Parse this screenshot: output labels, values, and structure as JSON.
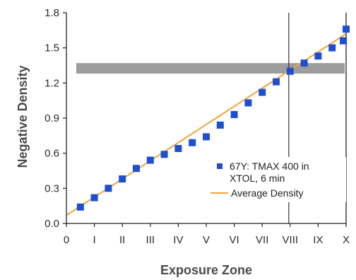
{
  "chart_data": {
    "type": "scatter",
    "title": "",
    "xlabel": "Exposure Zone",
    "ylabel": "Negative Density",
    "xlim": [
      0,
      10
    ],
    "ylim": [
      0,
      1.8
    ],
    "x_tick_labels": [
      "0",
      "I",
      "II",
      "III",
      "IV",
      "V",
      "VI",
      "VII",
      "VIII",
      "IX",
      "X"
    ],
    "y_ticks": [
      0,
      0.3,
      0.6,
      0.9,
      1.2,
      1.5,
      1.8
    ],
    "y_tick_labels": [
      "0.0",
      "0.3",
      "0.6",
      "0.9",
      "1.2",
      "1.5",
      "1.8"
    ],
    "grid": false,
    "legend_position": "bottom-right",
    "series": [
      {
        "name": "67Y: TMAX 400 in XTOL, 6 min",
        "kind": "markers",
        "color": "#1f4fd1",
        "x": [
          0.5,
          1.0,
          1.5,
          2.0,
          2.5,
          3.0,
          3.5,
          4.0,
          4.5,
          5.0,
          5.5,
          6.0,
          6.5,
          7.0,
          7.5,
          8.0,
          8.5,
          9.0,
          9.5,
          9.9,
          10.0
        ],
        "y": [
          0.14,
          0.22,
          0.3,
          0.38,
          0.47,
          0.54,
          0.59,
          0.64,
          0.69,
          0.74,
          0.84,
          0.93,
          1.03,
          1.12,
          1.21,
          1.3,
          1.37,
          1.43,
          1.5,
          1.56,
          1.66
        ]
      },
      {
        "name": "Average Density",
        "kind": "line",
        "color": "#f2a33a",
        "x": [
          0,
          10
        ],
        "y": [
          0.07,
          1.62
        ]
      }
    ],
    "annotations": {
      "shaded_band_y": [
        1.28,
        1.37
      ],
      "band_color": "#8c8c8c",
      "vertical_line_x": 7.95,
      "vertical_line_color": "#333333"
    }
  }
}
